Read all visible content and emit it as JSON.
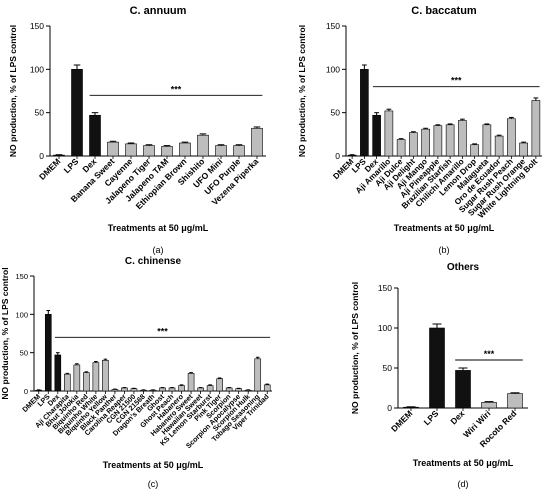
{
  "chart_data": [
    {
      "type": "bar",
      "title": "C. annuum",
      "ylabel": "NO production, % of LPS control",
      "xlabel": "Treatments at 50 μg/mL",
      "panel_label": "(a)",
      "ylim": [
        0,
        150
      ],
      "yticks": [
        0,
        50,
        100,
        150
      ],
      "categories": [
        "DMEM",
        "LPS",
        "Dex",
        "Banana Sweet",
        "Cayenne",
        "Jalapeno Tiger",
        "Jalapeno TAM",
        "Ethiopian Brown",
        "Shishito",
        "UFO Mini",
        "UFO Purple",
        "Vezena Piperka"
      ],
      "values": [
        1,
        100,
        47,
        16,
        14,
        12,
        11,
        15,
        24,
        12,
        12,
        32
      ],
      "errors": [
        0.5,
        5,
        3,
        1,
        1,
        1,
        1,
        1,
        1.5,
        1,
        1,
        1.5
      ],
      "fills": [
        "black",
        "black",
        "black",
        "gray",
        "gray",
        "gray",
        "gray",
        "gray",
        "gray",
        "gray",
        "gray",
        "gray"
      ],
      "significance": {
        "label": "***",
        "from": 2,
        "to": 11,
        "y": 70
      }
    },
    {
      "type": "bar",
      "title": "C. baccatum",
      "ylabel": "NO production, % of LPS control",
      "xlabel": "Treatments at 50 μg/mL",
      "panel_label": "(b)",
      "ylim": [
        0,
        150
      ],
      "yticks": [
        0,
        50,
        100,
        150
      ],
      "categories": [
        "DMEM",
        "LPS",
        "Dex",
        "Aji Amarillo",
        "Aji Dulce",
        "Aji Delight",
        "Aji Mango",
        "Aji Pineapple",
        "Brazilian Starfish",
        "Chilichi Amarillo",
        "Lemon Drop",
        "Malagueta",
        "Oro de Ecuador",
        "Sugar Rush Peach",
        "Sugar Rush Orange",
        "White Lightning Bolt"
      ],
      "values": [
        1,
        100,
        47,
        52,
        19,
        27,
        31,
        35,
        36,
        41,
        13,
        36,
        23,
        43,
        15,
        64
      ],
      "errors": [
        0.5,
        5,
        3,
        2,
        1,
        1,
        1,
        1,
        1,
        1.5,
        1,
        1,
        1,
        1.5,
        1,
        3
      ],
      "fills": [
        "black",
        "black",
        "black",
        "gray",
        "gray",
        "gray",
        "gray",
        "gray",
        "gray",
        "gray",
        "gray",
        "gray",
        "gray",
        "gray",
        "gray",
        "gray"
      ],
      "significance": {
        "label": "***",
        "from": 2,
        "to": 15,
        "y": 80
      }
    },
    {
      "type": "bar",
      "title": "C. chinense",
      "ylabel": "NO production, % of LPS control",
      "xlabel": "Treatments at 50 μg/mL",
      "panel_label": "(c)",
      "ylim": [
        0,
        150
      ],
      "yticks": [
        0,
        50,
        100,
        150
      ],
      "categories": [
        "DMEM",
        "LPS",
        "Dex",
        "Aji Charapita",
        "Bhut Jolokia",
        "Biquinho Red",
        "Biquinho White",
        "Biquinho Yellow",
        "Black Panther",
        "Carolina Reaper",
        "CGN 21500",
        "CGN 21568",
        "Dragon's Breath",
        "Ghost",
        "Ghost Peach",
        "Habanero",
        "Habanero Sweet",
        "Hawaiian Sweet",
        "KS Lemon Starburst",
        "Pink Tiger",
        "Scorpion",
        "Scorpion Apocalypse",
        "Scorpion Hulk",
        "Tobago Seasoning",
        "Viper Trinidad"
      ],
      "values": [
        1,
        100,
        47,
        22,
        34,
        24,
        37,
        40,
        2,
        4,
        3,
        1,
        1,
        4,
        4,
        7,
        23,
        4,
        7,
        16,
        4,
        3,
        1,
        42,
        8
      ],
      "errors": [
        0.5,
        5,
        3,
        1,
        1.5,
        1,
        1.5,
        1.5,
        0.5,
        0.5,
        0.5,
        0.5,
        0.5,
        0.5,
        0.5,
        1,
        1,
        0.5,
        1,
        1,
        0.5,
        0.5,
        0.5,
        2,
        1
      ],
      "fills": [
        "black",
        "black",
        "black",
        "gray",
        "gray",
        "gray",
        "gray",
        "gray",
        "gray",
        "gray",
        "gray",
        "gray",
        "gray",
        "gray",
        "gray",
        "gray",
        "gray",
        "gray",
        "gray",
        "gray",
        "gray",
        "gray",
        "gray",
        "gray",
        "gray"
      ],
      "significance": {
        "label": "***",
        "from": 2,
        "to": 24,
        "y": 70
      }
    },
    {
      "type": "bar",
      "title": "Others",
      "ylabel": "NO production, % of LPS control",
      "xlabel": "Treatments at 50 μg/mL",
      "panel_label": "(d)",
      "ylim": [
        0,
        150
      ],
      "yticks": [
        0,
        50,
        100,
        150
      ],
      "categories": [
        "DMEM",
        "LPS",
        "Dex",
        "Wiri Wiri",
        "Rocoto Red"
      ],
      "values": [
        1,
        100,
        47,
        7,
        18
      ],
      "errors": [
        0.5,
        5,
        3,
        1,
        1
      ],
      "fills": [
        "black",
        "black",
        "black",
        "gray",
        "gray"
      ],
      "significance": {
        "label": "***",
        "from": 2,
        "to": 4,
        "y": 60
      }
    }
  ],
  "colors": {
    "black_bar": "#111111",
    "gray_bar": "#bdbdbd",
    "axis": "#000000"
  }
}
